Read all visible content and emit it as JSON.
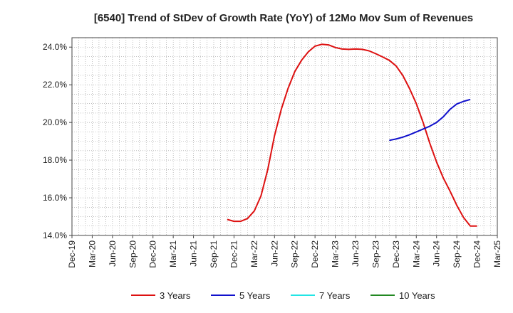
{
  "chart_data": {
    "type": "line",
    "title": "[6540]  Trend of StDev of Growth Rate (YoY) of 12Mo Mov Sum of Revenues",
    "xlabel": "",
    "ylabel": "",
    "x_tick_labels": [
      "Dec-19",
      "Mar-20",
      "Jun-20",
      "Sep-20",
      "Dec-20",
      "Mar-21",
      "Jun-21",
      "Sep-21",
      "Dec-21",
      "Mar-22",
      "Jun-22",
      "Sep-22",
      "Dec-22",
      "Mar-23",
      "Jun-23",
      "Sep-23",
      "Dec-23",
      "Mar-24",
      "Jun-24",
      "Sep-24",
      "Dec-24",
      "Mar-25"
    ],
    "x_start_month": "Dec-19",
    "xlim_months": [
      0,
      63
    ],
    "ylim": [
      14.0,
      24.5
    ],
    "y_ticks": [
      14.0,
      16.0,
      18.0,
      20.0,
      22.0,
      24.0
    ],
    "y_tick_labels": [
      "14.0%",
      "16.0%",
      "18.0%",
      "20.0%",
      "22.0%",
      "24.0%"
    ],
    "grid": true,
    "legend_position": "bottom",
    "series": [
      {
        "name": "3 Years",
        "color": "#dd1111",
        "x_months": [
          23,
          24,
          25,
          26,
          27,
          28,
          29,
          30,
          31,
          32,
          33,
          34,
          35,
          36,
          37,
          38,
          39,
          40,
          41,
          42,
          43,
          44,
          45,
          46,
          47,
          48,
          49,
          50,
          51,
          52,
          53,
          54,
          55,
          56,
          57,
          58,
          59,
          60
        ],
        "values": [
          14.85,
          14.75,
          14.75,
          14.9,
          15.3,
          16.1,
          17.5,
          19.3,
          20.7,
          21.8,
          22.7,
          23.3,
          23.75,
          24.05,
          24.15,
          24.12,
          23.98,
          23.9,
          23.88,
          23.9,
          23.88,
          23.8,
          23.65,
          23.48,
          23.3,
          23.0,
          22.5,
          21.8,
          21.0,
          20.0,
          18.9,
          17.9,
          17.05,
          16.35,
          15.6,
          14.95,
          14.5,
          14.5
        ]
      },
      {
        "name": "5 Years",
        "color": "#1111cc",
        "x_months": [
          47,
          48,
          49,
          50,
          51,
          52,
          53,
          54,
          55,
          56,
          57,
          58,
          59
        ],
        "values": [
          19.05,
          19.12,
          19.22,
          19.35,
          19.5,
          19.65,
          19.8,
          20.0,
          20.3,
          20.7,
          20.98,
          21.12,
          21.22
        ]
      },
      {
        "name": "7 Years",
        "color": "#22e5e5",
        "x_months": [],
        "values": []
      },
      {
        "name": "10 Years",
        "color": "#228822",
        "x_months": [],
        "values": []
      }
    ]
  }
}
